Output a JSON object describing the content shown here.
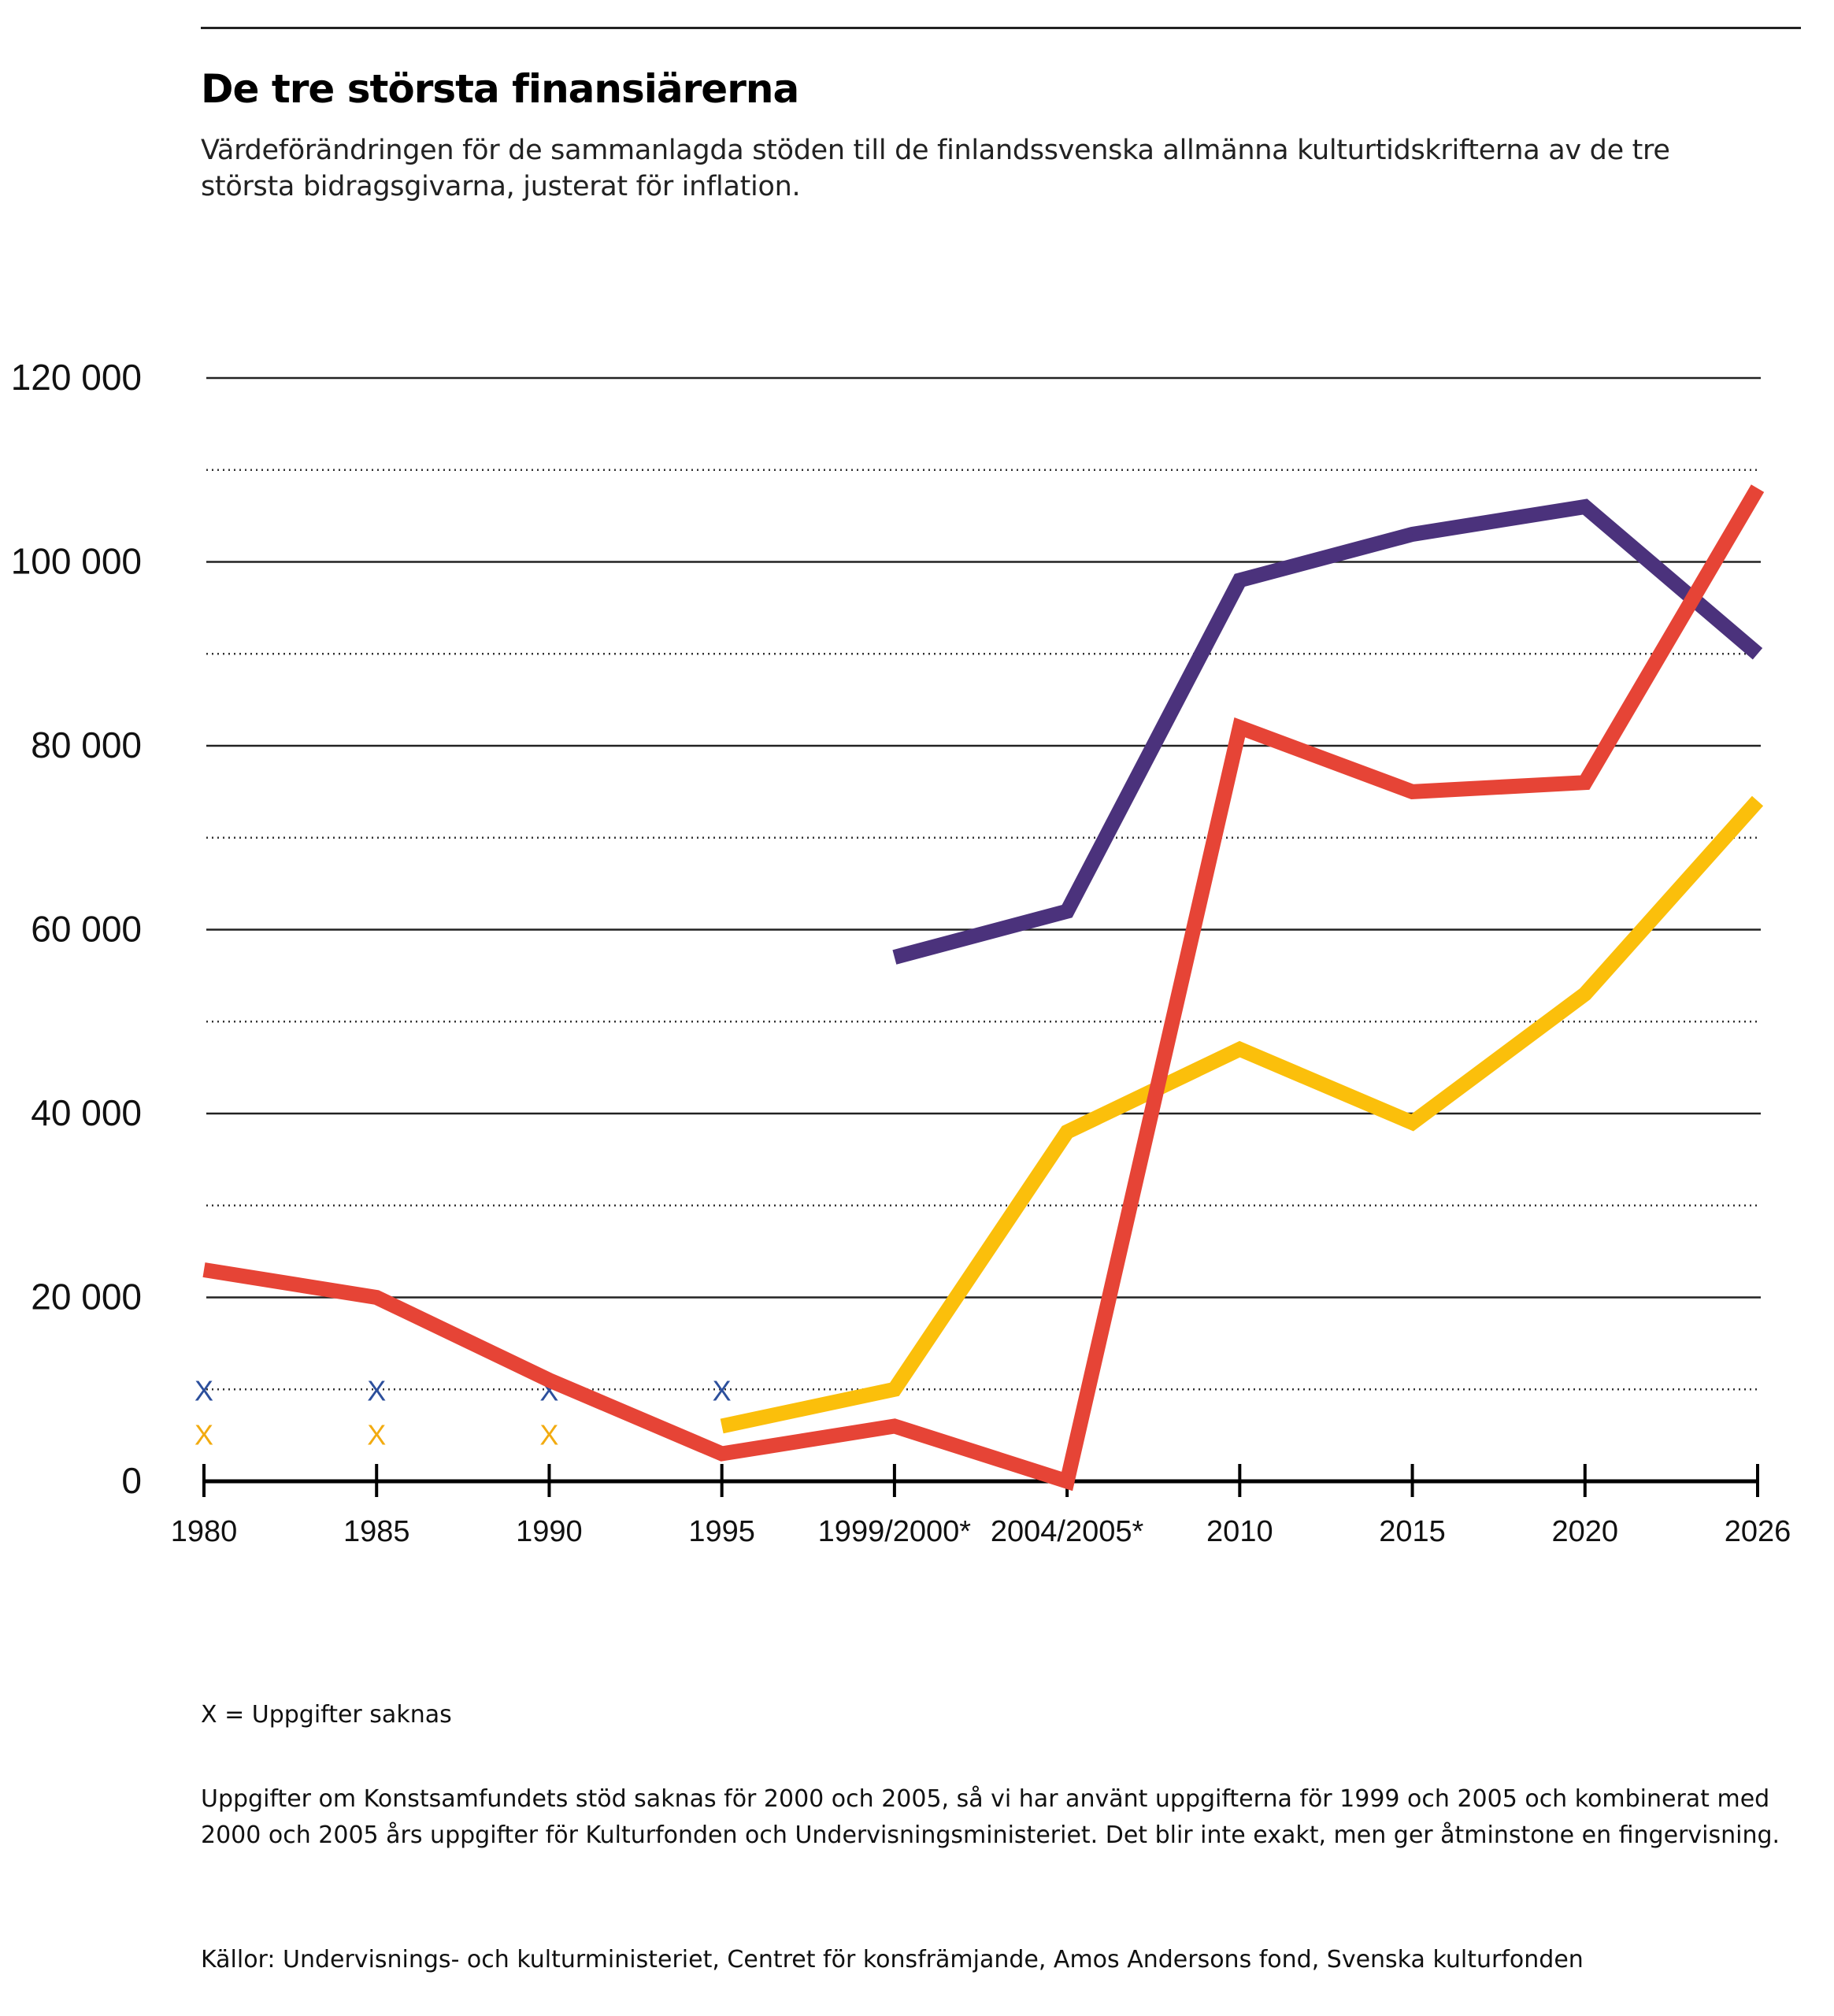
{
  "header": {
    "title": "De tre största finansiärerna",
    "subtitle": "Värdeförändringen för de sammanlagda stöden till de finlandssvenska allmänna kulturtidskrifterna av de tre största bidragsgivarna, justerat för inflation."
  },
  "notes": {
    "missing_legend": "X = Uppgifter saknas",
    "method": "Uppgifter om Konstsamfundets stöd saknas för 2000 och 2005, så vi har använt uppgifterna för 1999 och 2005 och kombinerat med 2000 och 2005 års uppgifter för Kulturfonden och Undervisningsministeriet. Det blir inte exakt, men ger åtminstone en fingervisning.",
    "sources": "Källor: Undervisnings- och kulturministeriet, Centret för konsfrämjande, Amos Andersons fond, Svenska kulturfonden"
  },
  "chart_data": {
    "type": "line",
    "title": "De tre största finansiärerna",
    "xlabel": "",
    "ylabel": "",
    "categories": [
      "1980",
      "1985",
      "1990",
      "1995",
      "1999/2000*",
      "2004/2005*",
      "2010",
      "2015",
      "2020",
      "2026"
    ],
    "ylim": [
      0,
      120000
    ],
    "yticks": [
      0,
      20000,
      40000,
      60000,
      80000,
      100000,
      120000
    ],
    "ytick_labels": [
      "0",
      "20 000",
      "40 000",
      "60 000",
      "80 000",
      "100 000",
      "120 000"
    ],
    "minor_gridlines": [
      10000,
      30000,
      50000,
      70000,
      90000,
      110000
    ],
    "grid": true,
    "legend": "none",
    "series": [
      {
        "name": "Purple series",
        "color": "#4b327c",
        "values": [
          null,
          null,
          null,
          null,
          57000,
          62000,
          98000,
          103000,
          106000,
          90000
        ],
        "missing_marker_color": "#2c4f9c",
        "missing_categories": [
          "1980",
          "1985",
          "1990",
          "1995"
        ]
      },
      {
        "name": "Red series",
        "color": "#e64436",
        "values": [
          23000,
          20000,
          11000,
          3000,
          6000,
          0,
          82000,
          75000,
          76000,
          108000
        ]
      },
      {
        "name": "Yellow series",
        "color": "#fbbf0b",
        "values": [
          null,
          null,
          null,
          6000,
          10000,
          38000,
          47000,
          39000,
          53000,
          74000
        ],
        "missing_marker_color": "#f2ab10",
        "missing_categories": [
          "1980",
          "1985",
          "1990"
        ]
      }
    ],
    "missing_marker_text": "X"
  }
}
